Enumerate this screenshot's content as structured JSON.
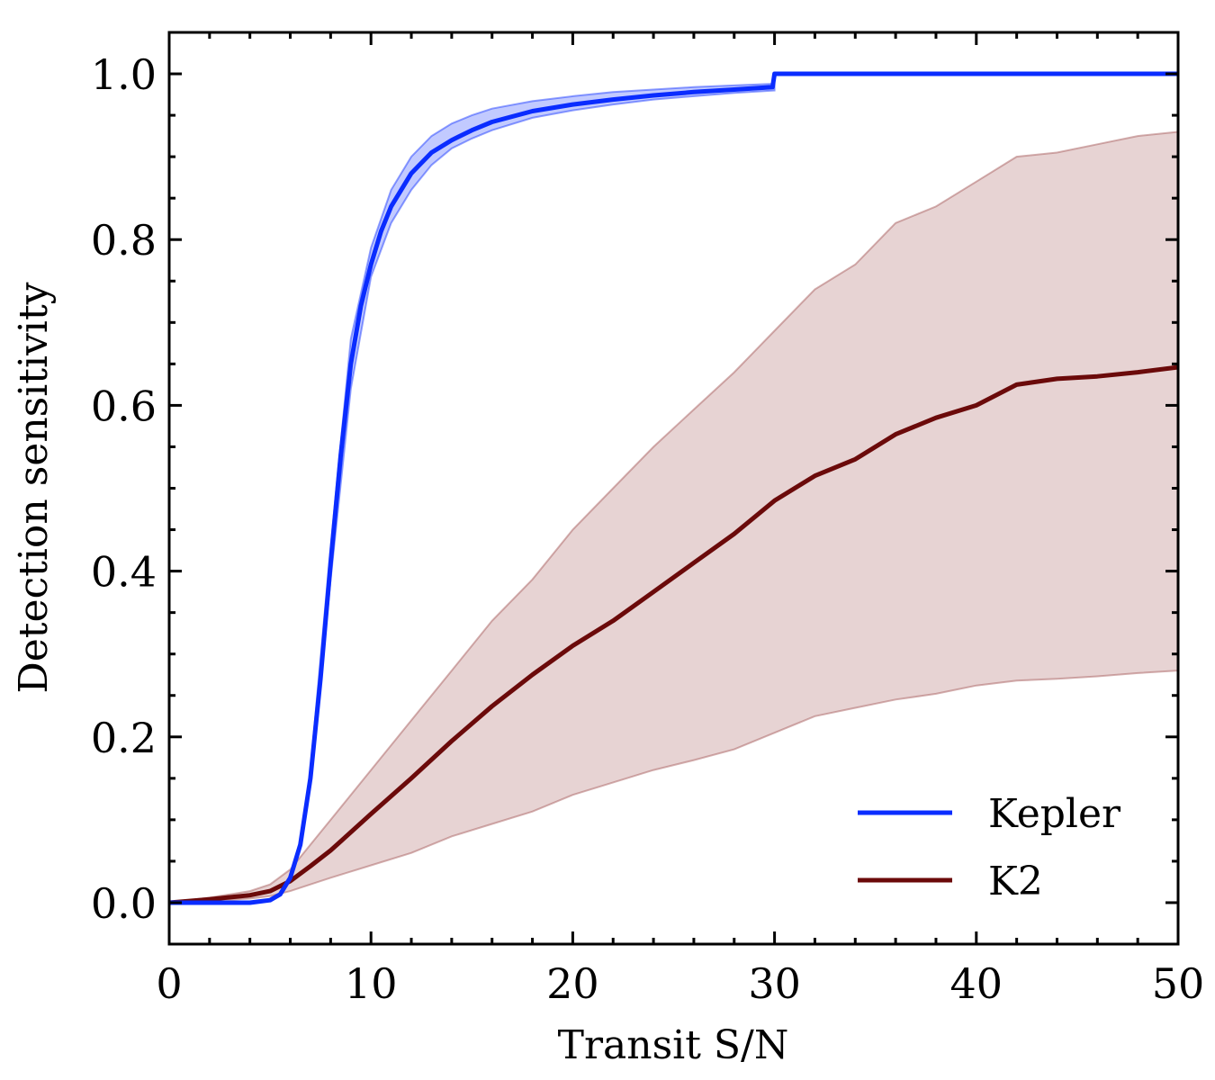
{
  "chart_data": {
    "type": "line",
    "title": "",
    "xlabel": "Transit S/N",
    "ylabel": "Detection sensitivity",
    "xlim": [
      0,
      50
    ],
    "ylim": [
      -0.05,
      1.05
    ],
    "xticks": [
      0,
      10,
      20,
      30,
      40,
      50
    ],
    "yticks": [
      0.0,
      0.2,
      0.4,
      0.6,
      0.8,
      1.0
    ],
    "xtick_labels": [
      "0",
      "10",
      "20",
      "30",
      "40",
      "50"
    ],
    "ytick_labels": [
      "0.0",
      "0.2",
      "0.4",
      "0.6",
      "0.8",
      "1.0"
    ],
    "grid": false,
    "legend_position": "lower-right",
    "series": [
      {
        "name": "Kepler",
        "color": "#0a2cff",
        "band_color": "#0a2cff",
        "x": [
          0,
          4,
          5,
          5.5,
          6,
          6.5,
          7,
          7.5,
          8,
          8.5,
          9,
          9.5,
          10,
          10.5,
          11,
          12,
          13,
          14,
          15,
          16,
          18,
          20,
          22,
          24,
          26,
          28,
          29.9,
          30,
          35,
          40,
          45,
          50
        ],
        "y": [
          0.0,
          0.0,
          0.003,
          0.01,
          0.03,
          0.07,
          0.15,
          0.27,
          0.41,
          0.54,
          0.65,
          0.72,
          0.77,
          0.81,
          0.84,
          0.88,
          0.905,
          0.92,
          0.932,
          0.942,
          0.955,
          0.963,
          0.969,
          0.974,
          0.978,
          0.981,
          0.984,
          1.0,
          1.0,
          1.0,
          1.0,
          1.0
        ],
        "band_x": [
          7,
          8,
          9,
          10,
          11,
          12,
          13,
          14,
          15,
          16,
          18,
          20,
          22,
          24,
          26,
          28,
          30
        ],
        "band_lower": [
          0.14,
          0.39,
          0.62,
          0.755,
          0.82,
          0.86,
          0.89,
          0.91,
          0.922,
          0.932,
          0.947,
          0.956,
          0.963,
          0.969,
          0.973,
          0.977,
          0.98
        ],
        "band_upper": [
          0.16,
          0.43,
          0.68,
          0.79,
          0.86,
          0.9,
          0.925,
          0.94,
          0.95,
          0.958,
          0.967,
          0.973,
          0.978,
          0.981,
          0.984,
          0.986,
          0.988
        ]
      },
      {
        "name": "K2",
        "color": "#6b0a0a",
        "band_color": "#a05050",
        "x": [
          0,
          2,
          4,
          5,
          6,
          7,
          8,
          10,
          12,
          14,
          16,
          18,
          20,
          22,
          24,
          26,
          28,
          30,
          32,
          34,
          36,
          38,
          40,
          42,
          44,
          46,
          48,
          50
        ],
        "y": [
          0.0,
          0.004,
          0.009,
          0.014,
          0.026,
          0.044,
          0.063,
          0.107,
          0.15,
          0.195,
          0.237,
          0.275,
          0.31,
          0.34,
          0.375,
          0.41,
          0.445,
          0.485,
          0.515,
          0.535,
          0.565,
          0.585,
          0.6,
          0.625,
          0.632,
          0.635,
          0.64,
          0.646
        ],
        "band_x": [
          0,
          2,
          4,
          5,
          6,
          7,
          8,
          10,
          12,
          14,
          16,
          18,
          20,
          22,
          24,
          26,
          28,
          30,
          32,
          34,
          36,
          38,
          40,
          42,
          44,
          46,
          48,
          50
        ],
        "band_lower": [
          0.0,
          0.002,
          0.005,
          0.008,
          0.014,
          0.022,
          0.03,
          0.045,
          0.06,
          0.08,
          0.095,
          0.11,
          0.13,
          0.145,
          0.16,
          0.172,
          0.185,
          0.205,
          0.225,
          0.235,
          0.245,
          0.252,
          0.262,
          0.268,
          0.27,
          0.273,
          0.277,
          0.28
        ],
        "band_upper": [
          0.0,
          0.006,
          0.014,
          0.022,
          0.04,
          0.07,
          0.1,
          0.16,
          0.22,
          0.28,
          0.34,
          0.39,
          0.45,
          0.5,
          0.55,
          0.595,
          0.64,
          0.69,
          0.74,
          0.77,
          0.82,
          0.84,
          0.87,
          0.9,
          0.905,
          0.915,
          0.925,
          0.93
        ]
      }
    ]
  }
}
